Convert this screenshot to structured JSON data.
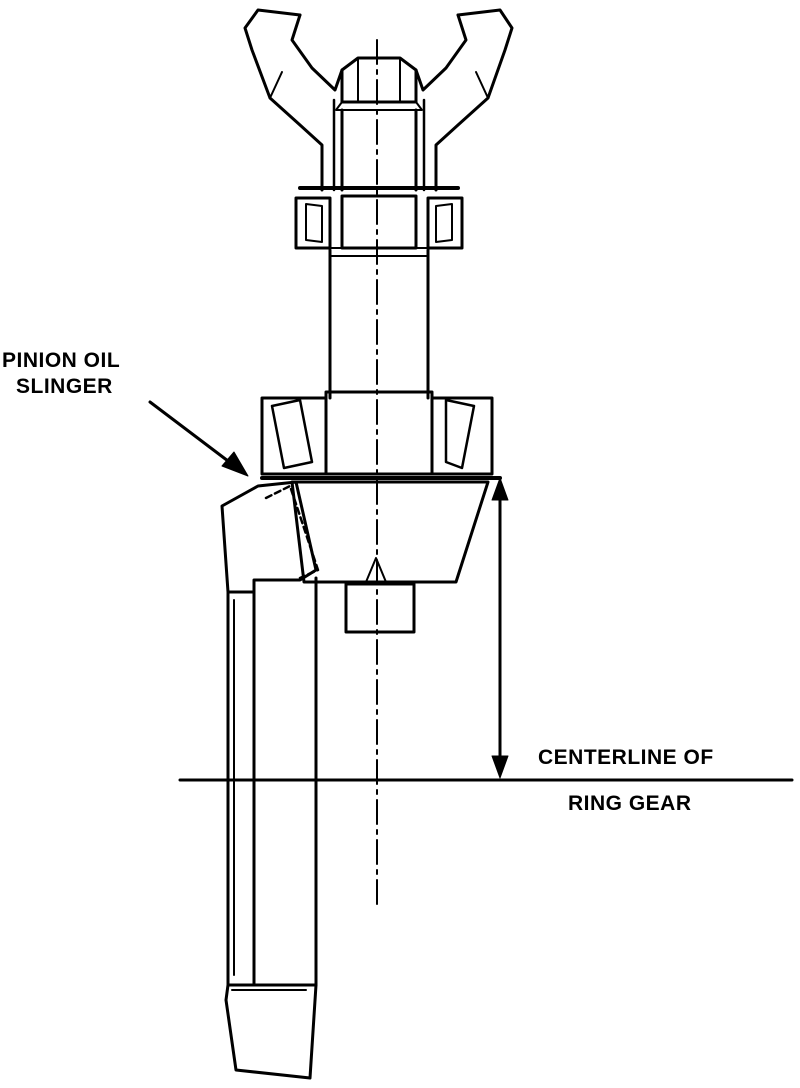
{
  "labels": {
    "pinion_oil_slinger": [
      "PINION OIL",
      "SLINGER"
    ],
    "centerline_of": "CENTERLINE OF",
    "ring_gear": "RING GEAR"
  },
  "colors": {
    "ink": "#000000",
    "paper": "#ffffff"
  }
}
